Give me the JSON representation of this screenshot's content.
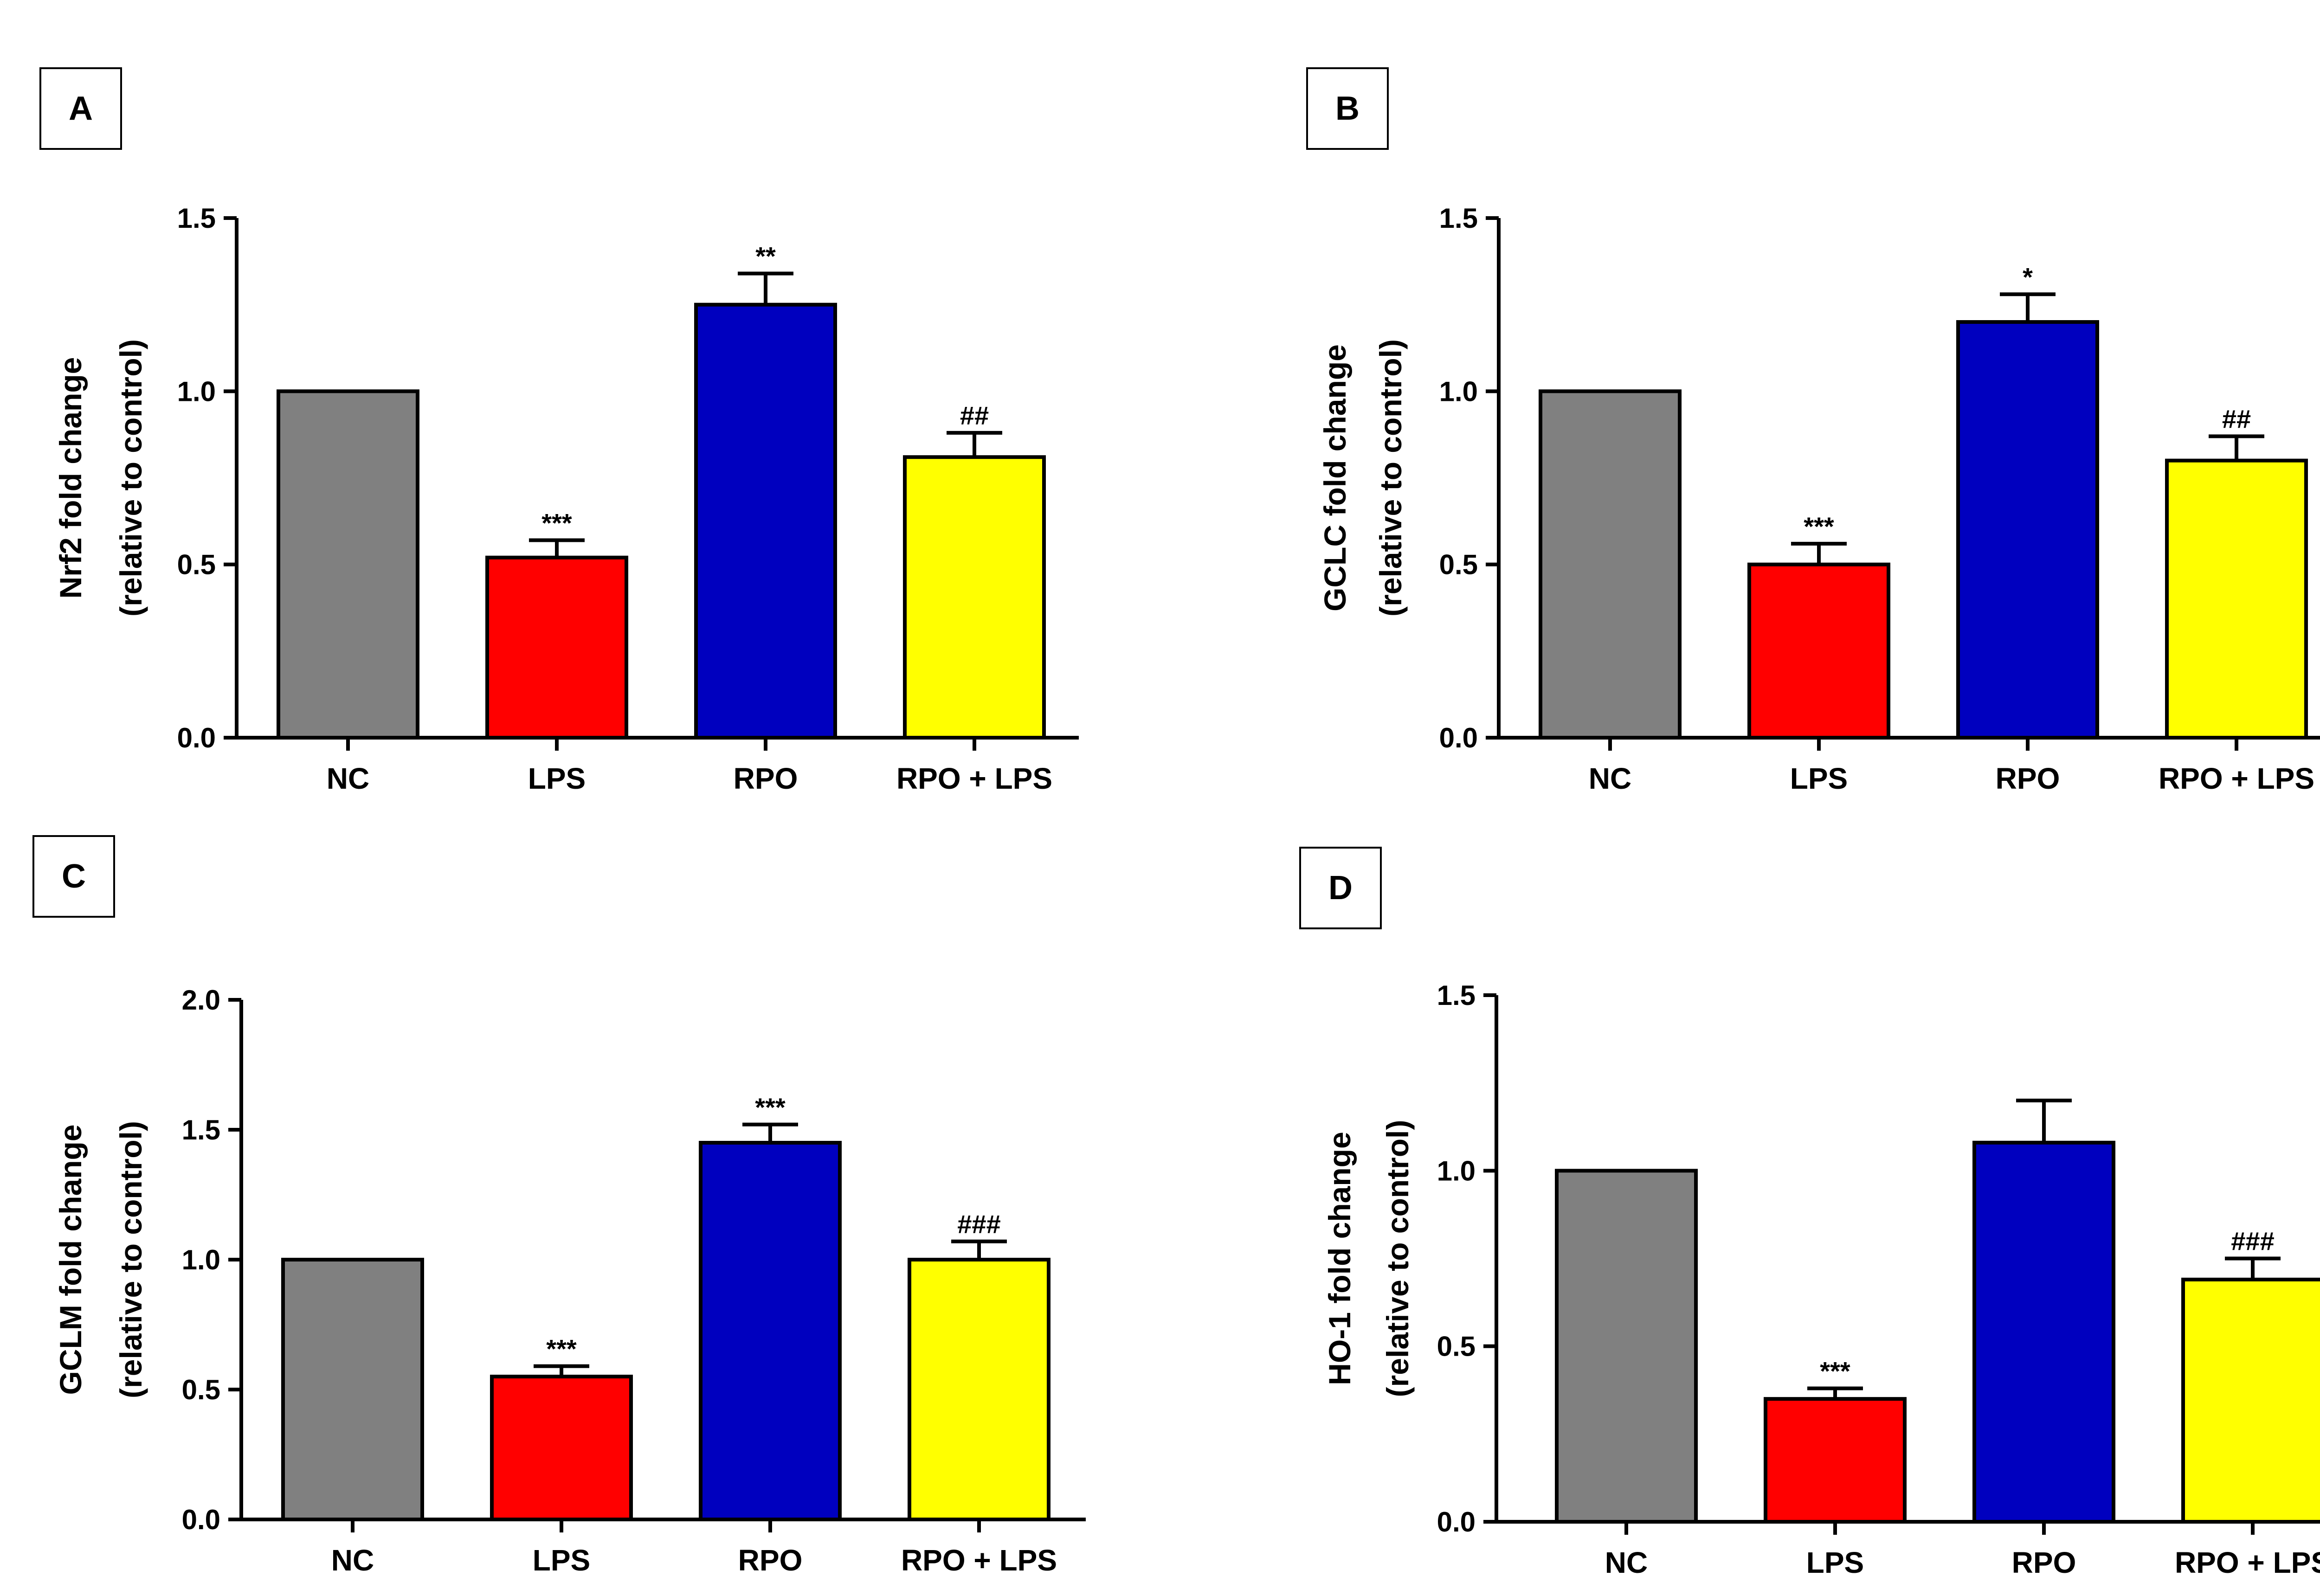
{
  "colors": {
    "NC": "#808080",
    "LPS": "#ff0000",
    "RPO": "#0000bf",
    "RPO + LPS": "#ffff00",
    "axis": "#000000"
  },
  "chart_data": [
    {
      "panel": "A",
      "type": "bar",
      "categories": [
        "NC",
        "LPS",
        "RPO",
        "RPO + LPS"
      ],
      "values": [
        1.0,
        0.52,
        1.25,
        0.81
      ],
      "errors": [
        0.0,
        0.05,
        0.09,
        0.07
      ],
      "significance": [
        "",
        "***",
        "**",
        "##"
      ],
      "ylabel": [
        "Nrf2 fold change",
        "(relative to control)"
      ],
      "ylim": [
        0,
        1.5
      ],
      "yticks": [
        "0.0",
        "0.5",
        "1.0",
        "1.5"
      ]
    },
    {
      "panel": "B",
      "type": "bar",
      "categories": [
        "NC",
        "LPS",
        "RPO",
        "RPO + LPS"
      ],
      "values": [
        1.0,
        0.5,
        1.2,
        0.8
      ],
      "errors": [
        0.0,
        0.06,
        0.08,
        0.07
      ],
      "significance": [
        "",
        "***",
        "*",
        "##"
      ],
      "ylabel": [
        "GCLC fold change",
        "(relative to control)"
      ],
      "ylim": [
        0,
        1.5
      ],
      "yticks": [
        "0.0",
        "0.5",
        "1.0",
        "1.5"
      ]
    },
    {
      "panel": "C",
      "type": "bar",
      "categories": [
        "NC",
        "LPS",
        "RPO",
        "RPO + LPS"
      ],
      "values": [
        1.0,
        0.55,
        1.45,
        1.0
      ],
      "errors": [
        0.0,
        0.04,
        0.07,
        0.07
      ],
      "significance": [
        "",
        "***",
        "***",
        "###"
      ],
      "ylabel": [
        "GCLM fold change",
        "(relative to control)"
      ],
      "ylim": [
        0,
        2.0
      ],
      "yticks": [
        "0.0",
        "0.5",
        "1.0",
        "1.5",
        "2.0"
      ]
    },
    {
      "panel": "D",
      "type": "bar",
      "categories": [
        "NC",
        "LPS",
        "RPO",
        "RPO + LPS"
      ],
      "values": [
        1.0,
        0.35,
        1.08,
        0.69
      ],
      "errors": [
        0.0,
        0.03,
        0.12,
        0.06
      ],
      "significance": [
        "",
        "***",
        "",
        "###"
      ],
      "ylabel": [
        "HO-1 fold change",
        "(relative to control)"
      ],
      "ylim": [
        0,
        1.5
      ],
      "yticks": [
        "0.0",
        "0.5",
        "1.0",
        "1.5"
      ]
    }
  ]
}
